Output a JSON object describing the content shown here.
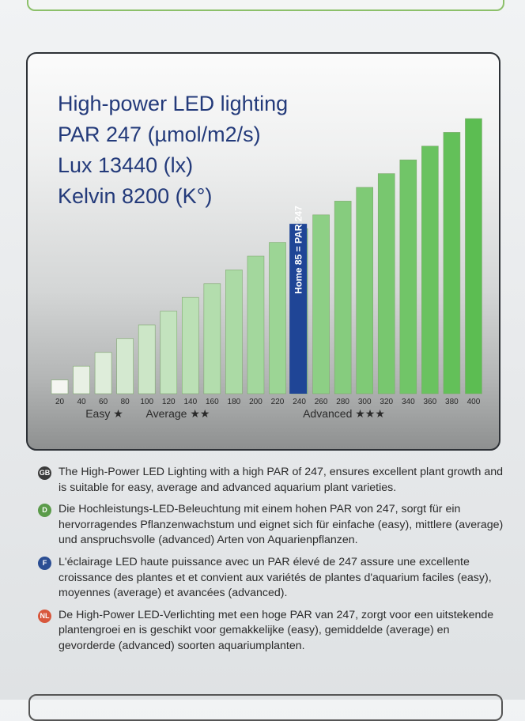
{
  "heading": {
    "line1": "High-power LED lighting",
    "line2": "PAR 247 (µmol/m2/s)",
    "line3": "Lux 13440 (lx)",
    "line4": "Kelvin 8200 (K°)"
  },
  "chart_data": {
    "type": "bar",
    "title": "High-power LED lighting",
    "categories": [
      "20",
      "40",
      "60",
      "80",
      "100",
      "120",
      "140",
      "160",
      "180",
      "200",
      "220",
      "240",
      "260",
      "280",
      "300",
      "320",
      "340",
      "360",
      "380",
      "400"
    ],
    "values": [
      20,
      40,
      60,
      80,
      100,
      120,
      140,
      160,
      180,
      200,
      220,
      240,
      260,
      280,
      300,
      320,
      340,
      360,
      380,
      400
    ],
    "ylim": [
      0,
      400
    ],
    "grid": false,
    "highlight": {
      "value": 247,
      "label": "Home 85 = PAR 247",
      "color": "#1f4596"
    },
    "colors": {
      "low": "#f4f5f1",
      "high": "#5cbd52",
      "edge": "#7fa96f"
    },
    "bands": [
      {
        "label": "Easy ★"
      },
      {
        "label": "Average ★★"
      },
      {
        "label": "Advanced ★★★"
      }
    ]
  },
  "notes": [
    {
      "badge": "GB",
      "badge_color": "#3a3a3a",
      "text": "The High-Power LED Lighting with a high PAR of 247, ensures excellent plant growth and is suitable for easy, average and advanced aquarium plant varieties."
    },
    {
      "badge": "D",
      "badge_color": "#5b9b4a",
      "text": "Die Hochleistungs-LED-Beleuchtung mit einem hohen PAR von 247, sorgt für ein hervorragendes Pflanzenwachstum und eignet sich für einfache (easy), mittlere (average) und anspruchsvolle (advanced) Arten von Aquarienpflanzen."
    },
    {
      "badge": "F",
      "badge_color": "#2b4e93",
      "text": "L'éclairage LED haute puissance avec un PAR élevé de 247 assure une excellente croissance des plantes et et convient aux variétés de plantes d'aquarium faciles (easy), moyennes (average) et avancées (advanced)."
    },
    {
      "badge": "NL",
      "badge_color": "#d8573c",
      "text": "De High-Power LED-Verlichting met een hoge PAR van 247, zorgt voor een uitstekende plantengroei en is geschikt voor gemakkelijke (easy), gemiddelde (average) en gevorderde (advanced) soorten aquariumplanten."
    }
  ]
}
